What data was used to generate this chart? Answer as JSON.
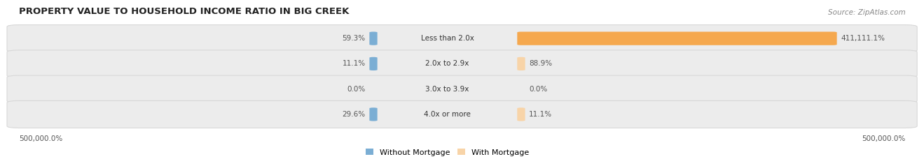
{
  "title": "PROPERTY VALUE TO HOUSEHOLD INCOME RATIO IN BIG CREEK",
  "source": "Source: ZipAtlas.com",
  "categories": [
    "Less than 2.0x",
    "2.0x to 2.9x",
    "3.0x to 3.9x",
    "4.0x or more"
  ],
  "without_mortgage": [
    59.3,
    11.1,
    0.0,
    29.6
  ],
  "with_mortgage": [
    411111.1,
    88.9,
    0.0,
    11.1
  ],
  "without_mortgage_color": "#7baed4",
  "with_mortgage_color": "#f5a84e",
  "with_mortgage_light_color": "#f8d4a8",
  "row_bg_color": "#ececec",
  "row_border_color": "#d8d8d8",
  "xlabel_left": "500,000.0%",
  "xlabel_right": "500,000.0%",
  "legend_without": "Without Mortgage",
  "legend_with": "With Mortgage",
  "max_val": 500000.0,
  "title_color": "#222222",
  "source_color": "#888888",
  "label_color": "#555555",
  "cat_color": "#333333"
}
